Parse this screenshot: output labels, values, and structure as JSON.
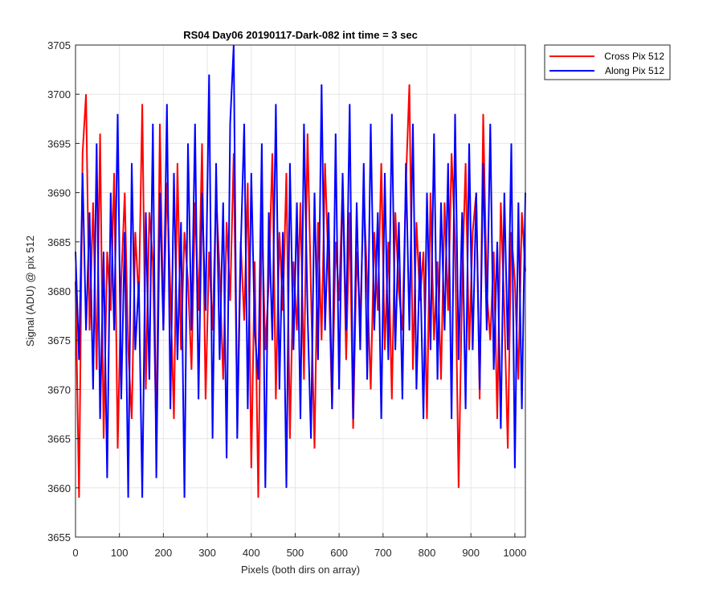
{
  "chart_data": {
    "type": "line",
    "title": "RS04 Day06 20190117-Dark-082 int time = 3 sec",
    "xlabel": "Pixels (both dirs on array)",
    "ylabel": "Signal (ADU) @ pix 512",
    "xlim": [
      0,
      1024
    ],
    "ylim": [
      3655,
      3705
    ],
    "xticks": [
      0,
      100,
      200,
      300,
      400,
      500,
      600,
      700,
      800,
      900,
      1000
    ],
    "yticks": [
      3655,
      3660,
      3665,
      3670,
      3675,
      3680,
      3685,
      3690,
      3695,
      3700,
      3705
    ],
    "grid": true,
    "legend_position": "outside top-right",
    "series": [
      {
        "name": "Cross Pix 512",
        "color": "#ff0000",
        "x": [
          0,
          8,
          16,
          24,
          32,
          40,
          48,
          56,
          64,
          72,
          80,
          88,
          96,
          104,
          112,
          120,
          128,
          136,
          144,
          152,
          160,
          168,
          176,
          184,
          192,
          200,
          208,
          216,
          224,
          232,
          240,
          248,
          256,
          264,
          272,
          280,
          288,
          296,
          304,
          312,
          320,
          328,
          336,
          344,
          352,
          360,
          368,
          376,
          384,
          392,
          400,
          408,
          416,
          424,
          432,
          440,
          448,
          456,
          464,
          472,
          480,
          488,
          496,
          504,
          512,
          520,
          528,
          536,
          544,
          552,
          560,
          568,
          576,
          584,
          592,
          600,
          608,
          616,
          624,
          632,
          640,
          648,
          656,
          664,
          672,
          680,
          688,
          696,
          704,
          712,
          720,
          728,
          736,
          744,
          752,
          760,
          768,
          776,
          784,
          792,
          800,
          808,
          816,
          824,
          832,
          840,
          848,
          856,
          864,
          872,
          880,
          888,
          896,
          904,
          912,
          920,
          928,
          936,
          944,
          952,
          960,
          968,
          976,
          984,
          992,
          1000,
          1008,
          1016,
          1024
        ],
        "values": [
          3681,
          3659,
          3694,
          3700,
          3676,
          3689,
          3672,
          3696,
          3665,
          3684,
          3678,
          3692,
          3664,
          3681,
          3690,
          3674,
          3667,
          3686,
          3679,
          3699,
          3670,
          3688,
          3683,
          3665,
          3697,
          3676,
          3691,
          3680,
          3667,
          3693,
          3674,
          3686,
          3681,
          3672,
          3689,
          3678,
          3695,
          3669,
          3684,
          3676,
          3690,
          3682,
          3671,
          3687,
          3679,
          3694,
          3667,
          3685,
          3677,
          3691,
          3662,
          3683,
          3659,
          3688,
          3674,
          3681,
          3694,
          3669,
          3686,
          3678,
          3692,
          3665,
          3683,
          3676,
          3689,
          3671,
          3696,
          3680,
          3664,
          3687,
          3675,
          3693,
          3682,
          3668,
          3685,
          3679,
          3691,
          3673,
          3688,
          3666,
          3684,
          3677,
          3690,
          3681,
          3670,
          3686,
          3678,
          3693,
          3674,
          3685,
          3669,
          3688,
          3680,
          3676,
          3691,
          3701,
          3672,
          3687,
          3679,
          3684,
          3667,
          3690,
          3675,
          3683,
          3671,
          3689,
          3678,
          3694,
          3685,
          3660,
          3681,
          3693,
          3674,
          3686,
          3690,
          3669,
          3698,
          3680,
          3675,
          3684,
          3667,
          3689,
          3678,
          3664,
          3686,
          3681,
          3671,
          3688,
          3682
        ]
      },
      {
        "name": "Along Pix 512",
        "color": "#0000ff",
        "x": [
          0,
          8,
          16,
          24,
          32,
          40,
          48,
          56,
          64,
          72,
          80,
          88,
          96,
          104,
          112,
          120,
          128,
          136,
          144,
          152,
          160,
          168,
          176,
          184,
          192,
          200,
          208,
          216,
          224,
          232,
          240,
          248,
          256,
          264,
          272,
          280,
          288,
          296,
          304,
          312,
          320,
          328,
          336,
          344,
          352,
          360,
          368,
          376,
          384,
          392,
          400,
          408,
          416,
          424,
          432,
          440,
          448,
          456,
          464,
          472,
          480,
          488,
          496,
          504,
          512,
          520,
          528,
          536,
          544,
          552,
          560,
          568,
          576,
          584,
          592,
          600,
          608,
          616,
          624,
          632,
          640,
          648,
          656,
          664,
          672,
          680,
          688,
          696,
          704,
          712,
          720,
          728,
          736,
          744,
          752,
          760,
          768,
          776,
          784,
          792,
          800,
          808,
          816,
          824,
          832,
          840,
          848,
          856,
          864,
          872,
          880,
          888,
          896,
          904,
          912,
          920,
          928,
          936,
          944,
          952,
          960,
          968,
          976,
          984,
          992,
          1000,
          1008,
          1016,
          1024
        ],
        "values": [
          3684,
          3673,
          3692,
          3676,
          3688,
          3670,
          3695,
          3667,
          3684,
          3661,
          3690,
          3676,
          3698,
          3669,
          3686,
          3659,
          3693,
          3674,
          3681,
          3659,
          3688,
          3671,
          3697,
          3661,
          3690,
          3676,
          3699,
          3668,
          3692,
          3673,
          3687,
          3659,
          3695,
          3676,
          3697,
          3669,
          3690,
          3678,
          3702,
          3665,
          3693,
          3673,
          3689,
          3663,
          3697,
          3705,
          3665,
          3684,
          3697,
          3668,
          3692,
          3676,
          3671,
          3695,
          3660,
          3688,
          3675,
          3699,
          3670,
          3686,
          3660,
          3693,
          3674,
          3689,
          3667,
          3697,
          3678,
          3665,
          3690,
          3673,
          3701,
          3676,
          3688,
          3668,
          3696,
          3670,
          3692,
          3676,
          3699,
          3667,
          3689,
          3674,
          3693,
          3671,
          3697,
          3676,
          3688,
          3667,
          3692,
          3673,
          3698,
          3674,
          3687,
          3669,
          3693,
          3676,
          3697,
          3670,
          3684,
          3667,
          3690,
          3674,
          3696,
          3671,
          3689,
          3676,
          3693,
          3667,
          3698,
          3673,
          3688,
          3668,
          3695,
          3674,
          3690,
          3670,
          3693,
          3676,
          3697,
          3672,
          3685,
          3666,
          3690,
          3674,
          3695,
          3662,
          3689,
          3668,
          3690
        ]
      }
    ]
  }
}
